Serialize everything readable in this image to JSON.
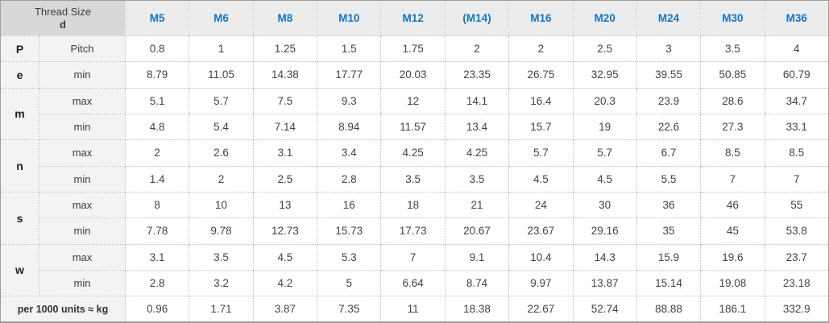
{
  "colors": {
    "column_header_text": "#1874bd",
    "corner_header_bg": "#d8d8d8",
    "column_header_bg": "#ececec",
    "label_cell_bg": "#f3f3f3",
    "value_cell_bg": "#ffffff",
    "body_text": "#40444a",
    "outer_border": "#9e9e9e",
    "inner_border_dotted": "#bdbdbd"
  },
  "chart_data": {
    "type": "table",
    "corner": {
      "line1": "Thread Size",
      "line2": "d"
    },
    "columns": [
      "M5",
      "M6",
      "M8",
      "M10",
      "M12",
      "(M14)",
      "M16",
      "M20",
      "M24",
      "M30",
      "M36"
    ],
    "rows": [
      {
        "group": "P",
        "sub": "Pitch",
        "values": [
          "0.8",
          "1",
          "1.25",
          "1.5",
          "1.75",
          "2",
          "2",
          "2.5",
          "3",
          "3.5",
          "4"
        ]
      },
      {
        "group": "e",
        "sub": "min",
        "values": [
          "8.79",
          "11.05",
          "14.38",
          "17.77",
          "20.03",
          "23.35",
          "26.75",
          "32.95",
          "39.55",
          "50.85",
          "60.79"
        ]
      },
      {
        "group": "m",
        "sub": "max",
        "values": [
          "5.1",
          "5.7",
          "7.5",
          "9.3",
          "12",
          "14.1",
          "16.4",
          "20.3",
          "23.9",
          "28.6",
          "34.7"
        ]
      },
      {
        "group": "m",
        "sub": "min",
        "values": [
          "4.8",
          "5.4",
          "7.14",
          "8.94",
          "11.57",
          "13.4",
          "15.7",
          "19",
          "22.6",
          "27.3",
          "33.1"
        ]
      },
      {
        "group": "n",
        "sub": "max",
        "values": [
          "2",
          "2.6",
          "3.1",
          "3.4",
          "4.25",
          "4.25",
          "5.7",
          "5.7",
          "6.7",
          "8.5",
          "8.5"
        ]
      },
      {
        "group": "n",
        "sub": "min",
        "values": [
          "1.4",
          "2",
          "2.5",
          "2.8",
          "3.5",
          "3.5",
          "4.5",
          "4.5",
          "5.5",
          "7",
          "7"
        ]
      },
      {
        "group": "s",
        "sub": "max",
        "values": [
          "8",
          "10",
          "13",
          "16",
          "18",
          "21",
          "24",
          "30",
          "36",
          "46",
          "55"
        ]
      },
      {
        "group": "s",
        "sub": "min",
        "values": [
          "7.78",
          "9.78",
          "12.73",
          "15.73",
          "17.73",
          "20.67",
          "23.67",
          "29.16",
          "35",
          "45",
          "53.8"
        ]
      },
      {
        "group": "w",
        "sub": "max",
        "values": [
          "3.1",
          "3.5",
          "4.5",
          "5.3",
          "7",
          "9.1",
          "10.4",
          "14.3",
          "15.9",
          "19.6",
          "23.7"
        ]
      },
      {
        "group": "w",
        "sub": "min",
        "values": [
          "2.8",
          "3.2",
          "4.2",
          "5",
          "6.64",
          "8.74",
          "9.97",
          "13.87",
          "15.14",
          "19.08",
          "23.18"
        ]
      },
      {
        "group": "",
        "sub": "per 1000 units ≈ kg",
        "values": [
          "0.96",
          "1.71",
          "3.87",
          "7.35",
          "11",
          "18.38",
          "22.67",
          "52.74",
          "88.88",
          "186.1",
          "332.9"
        ]
      }
    ]
  }
}
